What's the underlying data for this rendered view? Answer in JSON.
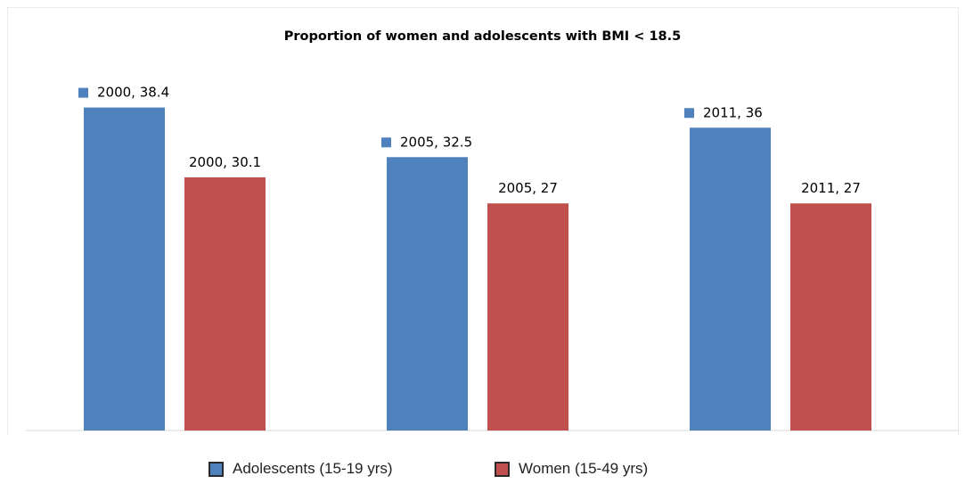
{
  "chart_data": {
    "type": "bar",
    "title": "Proportion of women and adolescents with BMI  < 18.5",
    "categories": [
      "2000",
      "2005",
      "2011"
    ],
    "series": [
      {
        "name": "Adolescents (15-19 yrs)",
        "color": "#4f81bd",
        "values": [
          38.4,
          32.5,
          36
        ]
      },
      {
        "name": "Women (15-49 yrs)",
        "color": "#c0504d",
        "values": [
          30.1,
          27,
          27
        ]
      }
    ],
    "data_labels": [
      [
        "2000, 38.4",
        "2005, 32.5",
        "2011, 36"
      ],
      [
        "2000, 30.1",
        "2005, 27",
        "2011, 27"
      ]
    ],
    "xlabel": "",
    "ylabel": "",
    "grid": false,
    "legend_position": "bottom"
  }
}
